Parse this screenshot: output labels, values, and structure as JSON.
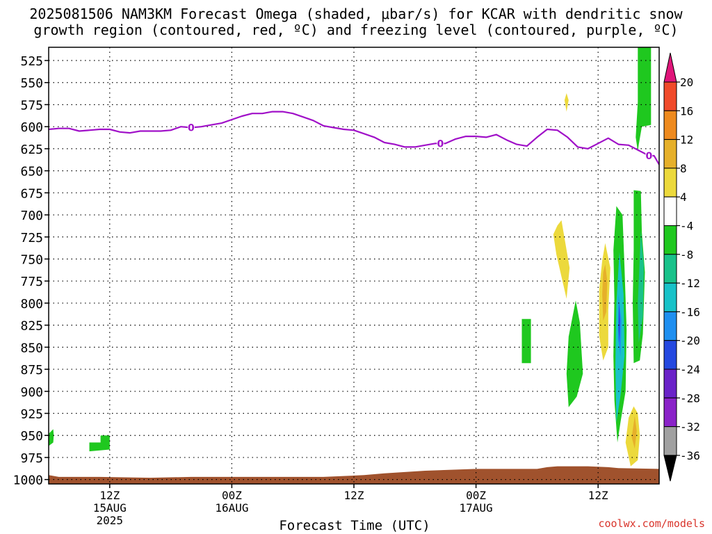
{
  "title_line1": "2025081506 NAM3KM Forecast Omega (shaded, μbar/s) for KCAR with dendritic snow",
  "title_line2": "growth region (contoured, red, ºC) and freezing level (contoured, purple, ºC)",
  "credit": "coolwx.com/models",
  "chart_data": {
    "type": "heatmap",
    "title": "2025081506 NAM3KM Forecast Omega (shaded, μbar/s) for KCAR with dendritic snow growth region (contoured, red, ºC) and freezing level (contoured, purple, ºC)",
    "xlabel": "Forecast Time (UTC)",
    "ylabel": "",
    "y_ticks": [
      525,
      550,
      575,
      600,
      625,
      650,
      675,
      700,
      725,
      750,
      775,
      800,
      825,
      850,
      875,
      900,
      925,
      950,
      975,
      1000
    ],
    "y_range": [
      1005,
      510
    ],
    "x_range_hours": [
      0,
      60
    ],
    "x_ticks": [
      {
        "hour": 6,
        "lines": [
          "12Z",
          "15AUG",
          "2025"
        ]
      },
      {
        "hour": 18,
        "lines": [
          "00Z",
          "16AUG"
        ]
      },
      {
        "hour": 30,
        "lines": [
          "12Z",
          ""
        ]
      },
      {
        "hour": 42,
        "lines": [
          "00Z",
          "17AUG"
        ]
      },
      {
        "hour": 54,
        "lines": [
          "12Z",
          ""
        ]
      }
    ],
    "grid": true,
    "colorbar": {
      "labels": [
        "20",
        "16",
        "12",
        "8",
        "4",
        "-4",
        "-8",
        "-12",
        "-16",
        "-20",
        "-24",
        "-28",
        "-32",
        "-36"
      ],
      "colors": [
        "#e0157a",
        "#f04a2a",
        "#ee8a1e",
        "#e6b02a",
        "#ecd93c",
        "#ffffff",
        "#1fc81f",
        "#19c28a",
        "#18c2c8",
        "#1f8ff0",
        "#2448e0",
        "#6a22c8",
        "#8a22c8",
        "#a0a0a0"
      ],
      "arrow_top_color": "#e0157a",
      "arrow_bottom_color": "#000000"
    },
    "freezing_level": {
      "label": "0",
      "color": "#a010c8",
      "points": [
        [
          0,
          603
        ],
        [
          1,
          602
        ],
        [
          2,
          602
        ],
        [
          3,
          605
        ],
        [
          4,
          604
        ],
        [
          5,
          603
        ],
        [
          6,
          603
        ],
        [
          7,
          606
        ],
        [
          8,
          607
        ],
        [
          9,
          605
        ],
        [
          10,
          605
        ],
        [
          11,
          605
        ],
        [
          12,
          604
        ],
        [
          13,
          600
        ],
        [
          14,
          601
        ],
        [
          15,
          600
        ],
        [
          16,
          598
        ],
        [
          17,
          596
        ],
        [
          18,
          592
        ],
        [
          19,
          588
        ],
        [
          20,
          585
        ],
        [
          21,
          585
        ],
        [
          22,
          583
        ],
        [
          23,
          583
        ],
        [
          24,
          585
        ],
        [
          25,
          589
        ],
        [
          26,
          593
        ],
        [
          27,
          599
        ],
        [
          28,
          601
        ],
        [
          29,
          603
        ],
        [
          30,
          604
        ],
        [
          31,
          608
        ],
        [
          32,
          612
        ],
        [
          33,
          618
        ],
        [
          34,
          620
        ],
        [
          35,
          623
        ],
        [
          36,
          623
        ],
        [
          37,
          621
        ],
        [
          38,
          619
        ],
        [
          39,
          619
        ],
        [
          40,
          614
        ],
        [
          41,
          611
        ],
        [
          42,
          611
        ],
        [
          43,
          612
        ],
        [
          44,
          609
        ],
        [
          45,
          615
        ],
        [
          46,
          620
        ],
        [
          47,
          622
        ],
        [
          48,
          612
        ],
        [
          49,
          603
        ],
        [
          50,
          604
        ],
        [
          51,
          612
        ],
        [
          52,
          623
        ],
        [
          53,
          625
        ],
        [
          54,
          619
        ],
        [
          55,
          613
        ],
        [
          56,
          620
        ],
        [
          57,
          621
        ],
        [
          58,
          627
        ],
        [
          59,
          633
        ],
        [
          59.5,
          633
        ],
        [
          60,
          643
        ]
      ],
      "contour_labels_hours": [
        14,
        38.5,
        59
      ]
    },
    "shaded_regions": [
      {
        "omega": -6,
        "points": [
          [
            0,
            948
          ],
          [
            0.45,
            943
          ],
          [
            0.5,
            950
          ],
          [
            0.45,
            958
          ],
          [
            0,
            962
          ]
        ]
      },
      {
        "omega": -6,
        "points": [
          [
            4,
            958
          ],
          [
            5.1,
            958
          ],
          [
            5.1,
            950
          ],
          [
            6,
            950
          ],
          [
            6,
            958
          ],
          [
            6,
            966
          ],
          [
            4,
            968
          ]
        ]
      },
      {
        "omega": 6,
        "points": [
          [
            50.9,
            562
          ],
          [
            51.1,
            570
          ],
          [
            50.9,
            583
          ],
          [
            50.7,
            570
          ]
        ]
      },
      {
        "omega": 6,
        "points": [
          [
            50.4,
            706
          ],
          [
            51.2,
            760
          ],
          [
            50.9,
            795
          ],
          [
            49.9,
            745
          ],
          [
            49.6,
            722
          ],
          [
            50,
            712
          ]
        ]
      },
      {
        "omega": -6,
        "points": [
          [
            46.5,
            818
          ],
          [
            47.4,
            818
          ],
          [
            47.4,
            868
          ],
          [
            46.5,
            868
          ]
        ]
      },
      {
        "omega": -6,
        "points": [
          [
            51.8,
            797
          ],
          [
            52.2,
            822
          ],
          [
            52.5,
            880
          ],
          [
            51.9,
            906
          ],
          [
            51.1,
            918
          ],
          [
            50.9,
            880
          ],
          [
            51.1,
            838
          ]
        ]
      },
      {
        "omega": 6,
        "points": [
          [
            54.7,
            732
          ],
          [
            55.2,
            760
          ],
          [
            55,
            808
          ],
          [
            55,
            850
          ],
          [
            54.5,
            865
          ],
          [
            54.1,
            837
          ],
          [
            54.1,
            785
          ],
          [
            54.4,
            752
          ]
        ]
      },
      {
        "omega": 10,
        "points": [
          [
            54.7,
            756
          ],
          [
            54.9,
            775
          ],
          [
            54.8,
            810
          ],
          [
            54.5,
            820
          ],
          [
            54.4,
            790
          ],
          [
            54.5,
            765
          ]
        ]
      },
      {
        "omega": -6,
        "points": [
          [
            55.8,
            690
          ],
          [
            56.4,
            700
          ],
          [
            56.6,
            760
          ],
          [
            56.8,
            830
          ],
          [
            56.7,
            900
          ],
          [
            56.2,
            935
          ],
          [
            55.9,
            958
          ],
          [
            55.6,
            910
          ],
          [
            55.5,
            860
          ],
          [
            55.6,
            795
          ],
          [
            55.5,
            740
          ]
        ]
      },
      {
        "omega": -14,
        "points": [
          [
            56.1,
            742
          ],
          [
            56.5,
            790
          ],
          [
            56.6,
            860
          ],
          [
            56.2,
            905
          ],
          [
            55.8,
            935
          ],
          [
            55.7,
            870
          ],
          [
            55.8,
            800
          ]
        ]
      },
      {
        "omega": -18,
        "points": [
          [
            56,
            790
          ],
          [
            56.3,
            820
          ],
          [
            56.2,
            860
          ],
          [
            55.95,
            840
          ]
        ]
      },
      {
        "omega": -22,
        "points": [
          [
            56.05,
            800
          ],
          [
            56.15,
            820
          ],
          [
            56.1,
            845
          ],
          [
            56,
            830
          ]
        ]
      },
      {
        "omega": 6,
        "points": [
          [
            57.5,
            917
          ],
          [
            57.9,
            925
          ],
          [
            58.1,
            950
          ],
          [
            57.9,
            978
          ],
          [
            57.2,
            985
          ],
          [
            56.7,
            958
          ],
          [
            57,
            930
          ]
        ]
      },
      {
        "omega": 10,
        "points": [
          [
            57.6,
            928
          ],
          [
            57.8,
            945
          ],
          [
            57.6,
            965
          ],
          [
            57.3,
            952
          ]
        ]
      },
      {
        "omega": -6,
        "points": [
          [
            57.5,
            672
          ],
          [
            58.2,
            673
          ],
          [
            58.3,
            720
          ],
          [
            58.6,
            765
          ],
          [
            58.4,
            835
          ],
          [
            58.1,
            865
          ],
          [
            57.5,
            868
          ],
          [
            57.4,
            800
          ],
          [
            57.5,
            740
          ]
        ]
      },
      {
        "omega": -10,
        "points": [
          [
            58.2,
            718
          ],
          [
            58.5,
            758
          ],
          [
            58.4,
            815
          ],
          [
            58,
            845
          ],
          [
            57.9,
            800
          ]
        ]
      },
      {
        "omega": -6,
        "points": [
          [
            57.9,
            510
          ],
          [
            59.2,
            510
          ],
          [
            59.2,
            598
          ],
          [
            58.3,
            600
          ],
          [
            58,
            620
          ],
          [
            57.9,
            628
          ],
          [
            57.7,
            612
          ],
          [
            57.9,
            572
          ]
        ]
      }
    ],
    "terrain": {
      "color": "#a0522d",
      "points": [
        [
          0,
          995
        ],
        [
          1,
          997
        ],
        [
          5,
          997
        ],
        [
          10,
          998
        ],
        [
          14,
          997
        ],
        [
          27,
          997
        ],
        [
          31,
          995
        ],
        [
          33,
          993
        ],
        [
          37,
          990
        ],
        [
          42,
          988
        ],
        [
          48,
          988
        ],
        [
          49,
          986
        ],
        [
          50,
          985
        ],
        [
          53,
          985
        ],
        [
          55,
          986
        ],
        [
          56,
          987
        ],
        [
          60,
          988
        ]
      ]
    }
  }
}
